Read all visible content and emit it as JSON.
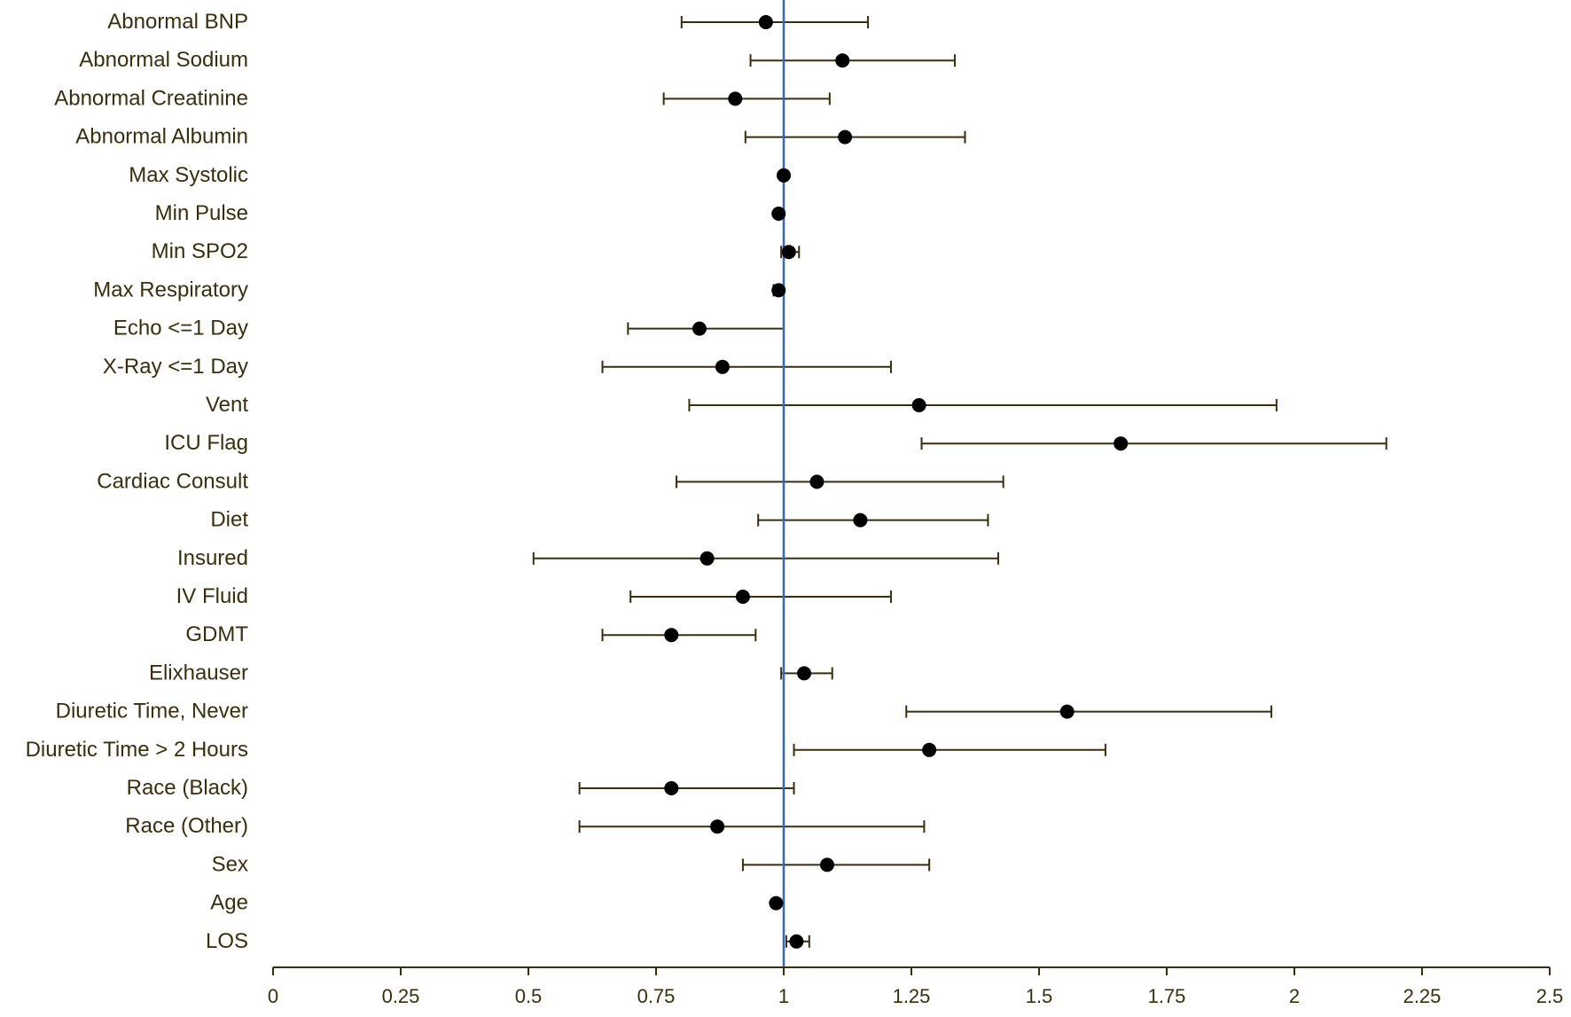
{
  "chart_data": {
    "type": "forest",
    "title": "",
    "xlabel": "",
    "ylabel": "",
    "xlim": [
      0,
      2.5
    ],
    "x_ticks": [
      0,
      0.25,
      0.5,
      0.75,
      1,
      1.25,
      1.5,
      1.75,
      2,
      2.25,
      2.5
    ],
    "x_tick_labels": [
      "0",
      "0.25",
      "0.5",
      "0.75",
      "1",
      "1.25",
      "1.5",
      "1.75",
      "2",
      "2.25",
      "2.5"
    ],
    "reference_line": 1,
    "grid": false,
    "legend": "none",
    "colors": {
      "text": "#3a2e0c",
      "marker": "#000000",
      "whisker": "#3a2e0c",
      "axis": "#3a2e0c",
      "reference_line": "#3366cc"
    },
    "rows": [
      {
        "label": "Abnormal BNP",
        "estimate": 0.965,
        "lower": 0.8,
        "upper": 1.165
      },
      {
        "label": "Abnormal Sodium",
        "estimate": 1.115,
        "lower": 0.935,
        "upper": 1.335
      },
      {
        "label": "Abnormal Creatinine",
        "estimate": 0.905,
        "lower": 0.765,
        "upper": 1.09
      },
      {
        "label": "Abnormal Albumin",
        "estimate": 1.12,
        "lower": 0.925,
        "upper": 1.355
      },
      {
        "label": "Max Systolic",
        "estimate": 1.0,
        "lower": 1.0,
        "upper": 1.0
      },
      {
        "label": "Min Pulse",
        "estimate": 0.99,
        "lower": 0.99,
        "upper": 0.99
      },
      {
        "label": "Min SPO2",
        "estimate": 1.01,
        "lower": 0.995,
        "upper": 1.03
      },
      {
        "label": "Max Respiratory",
        "estimate": 0.99,
        "lower": 0.98,
        "upper": 1.0
      },
      {
        "label": "Echo <=1 Day",
        "estimate": 0.835,
        "lower": 0.695,
        "upper": 1.0
      },
      {
        "label": "X-Ray <=1 Day",
        "estimate": 0.88,
        "lower": 0.645,
        "upper": 1.21
      },
      {
        "label": "Vent",
        "estimate": 1.265,
        "lower": 0.815,
        "upper": 1.965
      },
      {
        "label": "ICU Flag",
        "estimate": 1.66,
        "lower": 1.27,
        "upper": 2.18
      },
      {
        "label": "Cardiac Consult",
        "estimate": 1.065,
        "lower": 0.79,
        "upper": 1.43
      },
      {
        "label": "Diet",
        "estimate": 1.15,
        "lower": 0.95,
        "upper": 1.4
      },
      {
        "label": "Insured",
        "estimate": 0.85,
        "lower": 0.51,
        "upper": 1.42
      },
      {
        "label": "IV Fluid",
        "estimate": 0.92,
        "lower": 0.7,
        "upper": 1.21
      },
      {
        "label": "GDMT",
        "estimate": 0.78,
        "lower": 0.645,
        "upper": 0.945
      },
      {
        "label": "Elixhauser",
        "estimate": 1.04,
        "lower": 0.995,
        "upper": 1.095
      },
      {
        "label": "Diuretic Time, Never",
        "estimate": 1.555,
        "lower": 1.24,
        "upper": 1.955
      },
      {
        "label": "Diuretic Time > 2 Hours",
        "estimate": 1.285,
        "lower": 1.02,
        "upper": 1.63
      },
      {
        "label": "Race (Black)",
        "estimate": 0.78,
        "lower": 0.6,
        "upper": 1.02
      },
      {
        "label": "Race (Other)",
        "estimate": 0.87,
        "lower": 0.6,
        "upper": 1.275
      },
      {
        "label": "Sex",
        "estimate": 1.085,
        "lower": 0.92,
        "upper": 1.285
      },
      {
        "label": "Age",
        "estimate": 0.985,
        "lower": 0.98,
        "upper": 0.99
      },
      {
        "label": "LOS",
        "estimate": 1.025,
        "lower": 1.005,
        "upper": 1.05
      }
    ]
  }
}
